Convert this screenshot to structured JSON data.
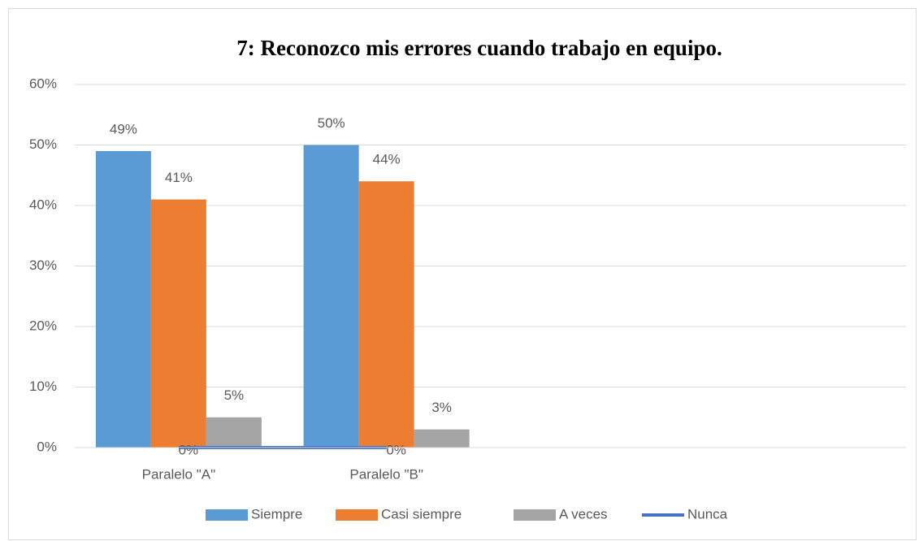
{
  "chart_data": {
    "type": "bar",
    "title": "7: Reconozco mis errores cuando trabajo en equipo.",
    "categories": [
      "Paralelo \"A\"",
      "Paralelo \"B\"",
      null,
      null
    ],
    "series": [
      {
        "name": "Siempre",
        "type": "bar",
        "color": "#5b9bd5",
        "values": [
          49,
          50,
          null,
          null
        ],
        "value_labels": [
          "49%",
          "50%",
          null,
          null
        ]
      },
      {
        "name": "Casi siempre",
        "type": "bar",
        "color": "#ed7d31",
        "values": [
          41,
          44,
          null,
          null
        ],
        "value_labels": [
          "41%",
          "44%",
          null,
          null
        ]
      },
      {
        "name": "A veces",
        "type": "bar",
        "color": "#a5a5a5",
        "values": [
          5,
          3,
          null,
          null
        ],
        "value_labels": [
          "5%",
          "3%",
          null,
          null
        ]
      },
      {
        "name": "Nunca",
        "type": "line",
        "color": "#4472c4",
        "values": [
          0,
          0,
          null,
          null
        ],
        "value_labels": [
          "0%",
          "0%",
          null,
          null
        ]
      }
    ],
    "ylim": [
      0,
      60
    ],
    "yticks": [
      {
        "value": 0,
        "label": "0%"
      },
      {
        "value": 10,
        "label": "10%"
      },
      {
        "value": 20,
        "label": "20%"
      },
      {
        "value": 30,
        "label": "30%"
      },
      {
        "value": 40,
        "label": "40%"
      },
      {
        "value": 50,
        "label": "50%"
      },
      {
        "value": 60,
        "label": "60%"
      }
    ],
    "grid": true,
    "legend": "bottom"
  }
}
